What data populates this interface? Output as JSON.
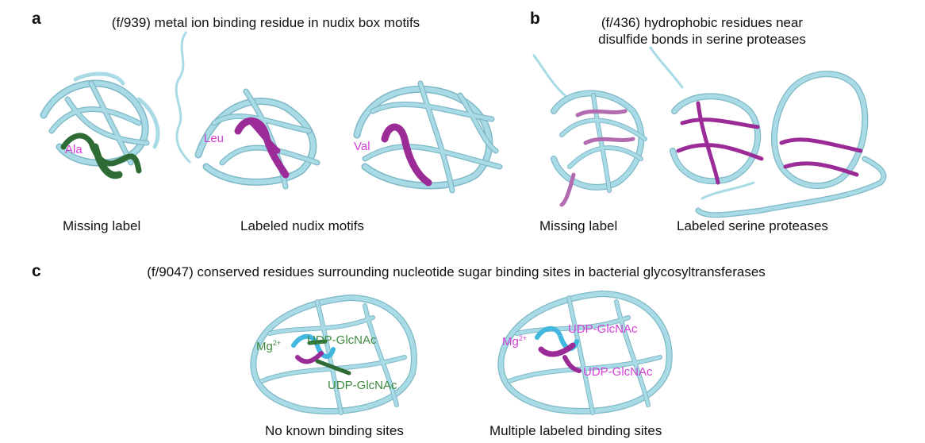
{
  "colors": {
    "ribbon": "#a9dbe6",
    "ribbon_shadow": "#7fb8c6",
    "magenta": "#9b2c97",
    "magenta_label": "#d23fd6",
    "green": "#2e6b35",
    "green_label": "#3e8a3e",
    "blue_highlight": "#42b8e0"
  },
  "panel_a": {
    "letter": "a",
    "title": "(f/939) metal ion binding residue in nudix box motifs",
    "residue_1": "Ala",
    "residue_2": "Leu",
    "residue_3": "Val",
    "caption_left": "Missing label",
    "caption_right": "Labeled nudix motifs"
  },
  "panel_b": {
    "letter": "b",
    "title_line1": "(f/436) hydrophobic residues near",
    "title_line2": "disulfide bonds in serine proteases",
    "caption_left": "Missing label",
    "caption_right": "Labeled serine proteases"
  },
  "panel_c": {
    "letter": "c",
    "title": "(f/9047) conserved residues surrounding nucleotide sugar binding sites in bacterial glycosyltransferases",
    "left": {
      "mg_label": "Mg",
      "mg_charge": "2+",
      "ligand_1": "UDP-GlcNAc",
      "ligand_2": "UDP-GlcNAc",
      "caption": "No known binding sites"
    },
    "right": {
      "mg_label": "Mg",
      "mg_charge": "2+",
      "ligand_1": "UDP-GlcNAc",
      "ligand_2": "UDP-GlcNAc",
      "caption": "Multiple labeled binding sites"
    }
  }
}
